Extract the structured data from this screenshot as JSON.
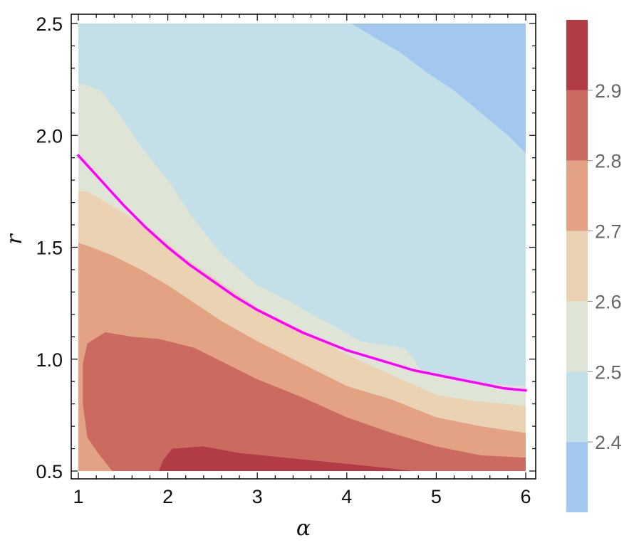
{
  "chart_data": {
    "type": "contour",
    "xlabel": "α",
    "ylabel": "r",
    "xlim": [
      1,
      6
    ],
    "ylim": [
      0.5,
      2.5
    ],
    "x_ticks": [
      {
        "value": 1,
        "label": "1"
      },
      {
        "value": 2,
        "label": "2"
      },
      {
        "value": 3,
        "label": "3"
      },
      {
        "value": 4,
        "label": "4"
      },
      {
        "value": 5,
        "label": "5"
      },
      {
        "value": 6,
        "label": "6"
      }
    ],
    "y_ticks": [
      {
        "value": 0.5,
        "label": "0.5"
      },
      {
        "value": 1.0,
        "label": "1.0"
      },
      {
        "value": 1.5,
        "label": "1.5"
      },
      {
        "value": 2.0,
        "label": "2.0"
      },
      {
        "value": 2.5,
        "label": "2.5"
      }
    ],
    "contour_levels": [
      2.4,
      2.5,
      2.6,
      2.7,
      2.8,
      2.9
    ],
    "colorbar": {
      "range": [
        2.3,
        3.0
      ],
      "labels": [
        {
          "value": 2.4,
          "label": "2.4"
        },
        {
          "value": 2.5,
          "label": "2.5"
        },
        {
          "value": 2.6,
          "label": "2.6"
        },
        {
          "value": 2.7,
          "label": "2.7"
        },
        {
          "value": 2.8,
          "label": "2.8"
        },
        {
          "value": 2.9,
          "label": "2.9"
        }
      ],
      "band_colors": [
        "#a3c7ef",
        "#c3e0e8",
        "#dfe5d6",
        "#ebd2b2",
        "#e2a283",
        "#cb6a5f",
        "#b13c45"
      ]
    },
    "regions": [
      {
        "level": 2.4,
        "polygon": [
          [
            1,
            0.5
          ],
          [
            6,
            0.5
          ],
          [
            6,
            1.92
          ],
          [
            5.8,
            2.0
          ],
          [
            5.5,
            2.1
          ],
          [
            5.2,
            2.2
          ],
          [
            4.9,
            2.28
          ],
          [
            4.6,
            2.37
          ],
          [
            4.3,
            2.44
          ],
          [
            4.05,
            2.5
          ],
          [
            1,
            2.5
          ]
        ]
      },
      {
        "level": 2.5,
        "polygon": [
          [
            1,
            0.5
          ],
          [
            6,
            0.5
          ],
          [
            6,
            0.88
          ],
          [
            5.5,
            0.89
          ],
          [
            5.0,
            0.93
          ],
          [
            4.85,
            0.94
          ],
          [
            4.65,
            1.05
          ],
          [
            4.15,
            1.08
          ],
          [
            3.9,
            1.14
          ],
          [
            3.65,
            1.19
          ],
          [
            3.4,
            1.25
          ],
          [
            3.0,
            1.33
          ],
          [
            2.6,
            1.47
          ],
          [
            2.3,
            1.62
          ],
          [
            2.0,
            1.8
          ],
          [
            1.7,
            1.95
          ],
          [
            1.45,
            2.1
          ],
          [
            1.25,
            2.2
          ],
          [
            1.05,
            2.23
          ],
          [
            1,
            2.23
          ]
        ]
      },
      {
        "level": 2.6,
        "polygon": [
          [
            1,
            0.5
          ],
          [
            6,
            0.5
          ],
          [
            6,
            0.79
          ],
          [
            5.5,
            0.81
          ],
          [
            5.0,
            0.84
          ],
          [
            4.5,
            0.93
          ],
          [
            4.0,
            1.02
          ],
          [
            3.5,
            1.13
          ],
          [
            3.0,
            1.23
          ],
          [
            2.6,
            1.34
          ],
          [
            2.2,
            1.45
          ],
          [
            1.8,
            1.58
          ],
          [
            1.4,
            1.68
          ],
          [
            1.1,
            1.75
          ],
          [
            1,
            1.75
          ]
        ]
      },
      {
        "level": 2.7,
        "polygon": [
          [
            1.15,
            0.5
          ],
          [
            6,
            0.5
          ],
          [
            6,
            0.67
          ],
          [
            5.5,
            0.7
          ],
          [
            5.0,
            0.74
          ],
          [
            4.5,
            0.82
          ],
          [
            4.0,
            0.88
          ],
          [
            3.5,
            0.98
          ],
          [
            3.0,
            1.08
          ],
          [
            2.6,
            1.17
          ],
          [
            2.3,
            1.25
          ],
          [
            2.0,
            1.33
          ],
          [
            1.7,
            1.4
          ],
          [
            1.4,
            1.46
          ],
          [
            1.15,
            1.5
          ],
          [
            1,
            1.52
          ],
          [
            1,
            0.5
          ]
        ]
      },
      {
        "level": 2.8,
        "polygon": [
          [
            1.38,
            0.5
          ],
          [
            6,
            0.5
          ],
          [
            6,
            0.56
          ],
          [
            5.5,
            0.57
          ],
          [
            5.0,
            0.61
          ],
          [
            4.5,
            0.67
          ],
          [
            4.0,
            0.74
          ],
          [
            3.5,
            0.83
          ],
          [
            3.0,
            0.91
          ],
          [
            2.6,
            0.99
          ],
          [
            2.3,
            1.05
          ],
          [
            1.9,
            1.09
          ],
          [
            1.6,
            1.1
          ],
          [
            1.3,
            1.12
          ],
          [
            1.1,
            1.07
          ],
          [
            1.05,
            0.98
          ],
          [
            1.05,
            0.8
          ],
          [
            1.1,
            0.65
          ],
          [
            1.22,
            0.58
          ]
        ]
      },
      {
        "level": 2.9,
        "polygon": [
          [
            1.9,
            0.5
          ],
          [
            4.75,
            0.5
          ],
          [
            4.3,
            0.52
          ],
          [
            3.8,
            0.54
          ],
          [
            3.3,
            0.56
          ],
          [
            2.8,
            0.58
          ],
          [
            2.4,
            0.61
          ],
          [
            2.05,
            0.6
          ],
          [
            1.95,
            0.55
          ]
        ]
      }
    ],
    "curve": {
      "color": "#ff00ff",
      "x": [
        1,
        1.25,
        1.5,
        1.75,
        2,
        2.25,
        2.5,
        2.75,
        3,
        3.25,
        3.5,
        3.75,
        4,
        4.25,
        4.5,
        4.75,
        5,
        5.25,
        5.5,
        5.75,
        6
      ],
      "y": [
        1.91,
        1.8,
        1.69,
        1.59,
        1.5,
        1.42,
        1.35,
        1.28,
        1.22,
        1.17,
        1.12,
        1.08,
        1.04,
        1.01,
        0.98,
        0.95,
        0.93,
        0.91,
        0.89,
        0.87,
        0.86
      ]
    },
    "grid": false,
    "legend": "colorbar-right"
  }
}
